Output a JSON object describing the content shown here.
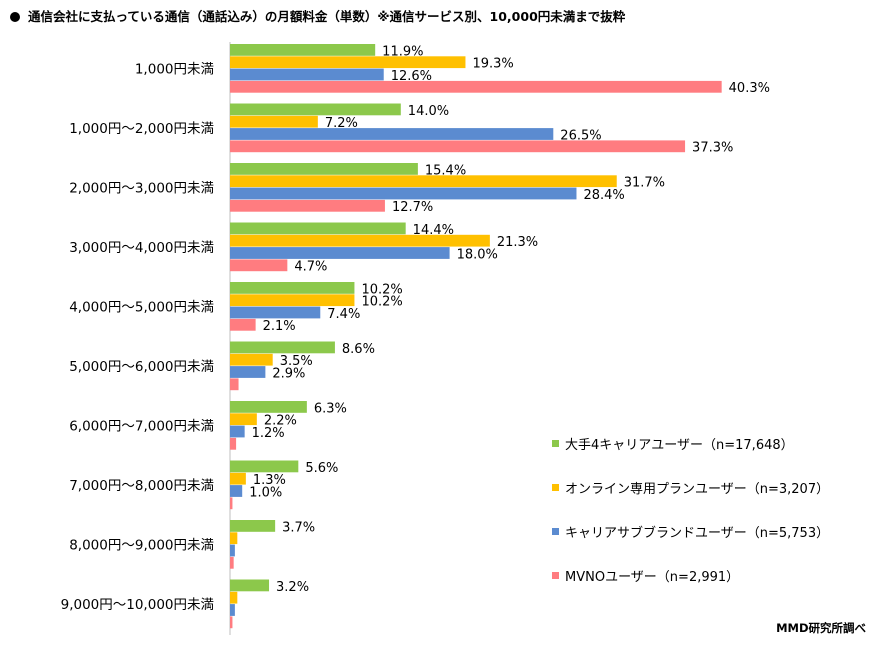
{
  "title": "通信会社に支払っている通信（通話込み）の月額料金（単数）※通信サービス別、10,000円未満まで抜粋",
  "source": "MMD研究所調べ",
  "colors": {
    "series1": "#8CC84B",
    "series2": "#FFC000",
    "series3": "#5B8BD0",
    "series4": "#FF7C80"
  },
  "chart_data": {
    "type": "bar",
    "orientation": "horizontal",
    "categories": [
      "1,000円未満",
      "1,000円～2,000円未満",
      "2,000円～3,000円未満",
      "3,000円～4,000円未満",
      "4,000円～5,000円未満",
      "5,000円～6,000円未満",
      "6,000円～7,000円未満",
      "7,000円～8,000円未満",
      "8,000円～9,000円未満",
      "9,000円～10,000円未満"
    ],
    "series": [
      {
        "name": "大手4キャリアユーザー（n=17,648）",
        "values": [
          11.9,
          14.0,
          15.4,
          14.4,
          10.2,
          8.6,
          6.3,
          5.6,
          3.7,
          3.2
        ],
        "labels": [
          "11.9%",
          "14.0%",
          "15.4%",
          "14.4%",
          "10.2%",
          "8.6%",
          "6.3%",
          "5.6%",
          "3.7%",
          "3.2%"
        ]
      },
      {
        "name": "オンライン専用プランユーザー（n=3,207）",
        "values": [
          19.3,
          7.2,
          31.7,
          21.3,
          10.2,
          3.5,
          2.2,
          1.3,
          0.6,
          0.6
        ],
        "labels": [
          "19.3%",
          "7.2%",
          "31.7%",
          "21.3%",
          "10.2%",
          "3.5%",
          "2.2%",
          "1.3%",
          "",
          ""
        ]
      },
      {
        "name": "キャリアサブブランドユーザー（n=5,753）",
        "values": [
          12.6,
          26.5,
          28.4,
          18.0,
          7.4,
          2.9,
          1.2,
          1.0,
          0.4,
          0.4
        ],
        "labels": [
          "12.6%",
          "26.5%",
          "28.4%",
          "18.0%",
          "7.4%",
          "2.9%",
          "1.2%",
          "1.0%",
          "",
          ""
        ]
      },
      {
        "name": "MVNOユーザー（n=2,991）",
        "values": [
          40.3,
          37.3,
          12.7,
          4.7,
          2.1,
          0.7,
          0.5,
          0.2,
          0.3,
          0.2
        ],
        "labels": [
          "40.3%",
          "37.3%",
          "12.7%",
          "4.7%",
          "2.1%",
          "",
          "",
          "",
          "",
          ""
        ]
      }
    ],
    "xlim": [
      0,
      45
    ],
    "grid": false,
    "legend_position": "bottom-right"
  }
}
